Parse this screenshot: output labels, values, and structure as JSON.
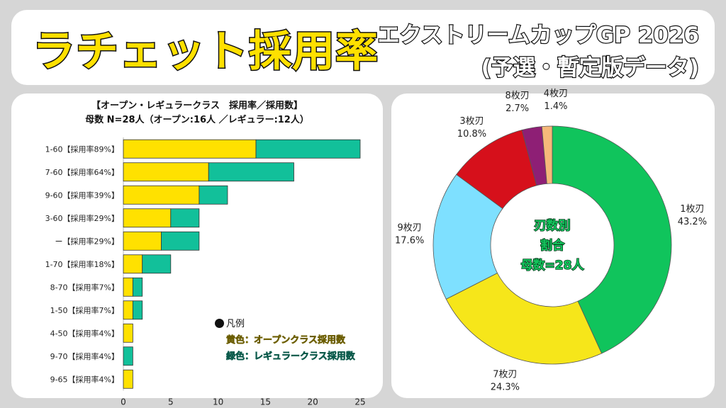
{
  "header": {
    "title": "ラチェット採用率",
    "subtitle_line1": "エクストリームカップGP 2026",
    "subtitle_line2": "(予選・暫定版データ)"
  },
  "bar_chart": {
    "title_line1": "【オープン・レギュラークラス　採用率／採用数】",
    "title_line2": "母数 N=28人（オープン:16人 ／レギュラー:12人）",
    "legend": {
      "title": "凡例",
      "yellow_label": "黄色：オープンクラス採用数",
      "green_label": "緑色：レギュラークラス採用数"
    }
  },
  "pie_chart": {
    "center_line1": "刃数別",
    "center_line2": "割合",
    "center_line3": "母数=28人"
  },
  "colors": {
    "open": "#ffe100",
    "regular": "#12c09a",
    "slice_1": "#10c45c",
    "slice_7": "#f6e61a",
    "slice_9": "#7ee0ff",
    "slice_3": "#d6101b",
    "slice_8": "#8e1f75",
    "slice_4": "#f6b87a"
  },
  "chart_data": [
    {
      "type": "bar",
      "orientation": "horizontal",
      "stacked": true,
      "categories": [
        "1-60【採用率89%】",
        "7-60【採用率64%】",
        "9-60【採用率39%】",
        "3-60【採用率29%】",
        "ー【採用率29%】",
        "1-70【採用率18%】",
        "8-70【採用率7%】",
        "1-50【採用率7%】",
        "4-50【採用率4%】",
        "9-70【採用率4%】",
        "9-65【採用率4%】"
      ],
      "series": [
        {
          "name": "オープンクラス採用数",
          "values": [
            14,
            9,
            8,
            5,
            4,
            2,
            1,
            1,
            1,
            0,
            1
          ]
        },
        {
          "name": "レギュラークラス採用数",
          "values": [
            11,
            9,
            3,
            3,
            4,
            3,
            1,
            1,
            0,
            1,
            0
          ]
        }
      ],
      "xlim": [
        0,
        25
      ],
      "xticks": [
        0,
        5,
        10,
        15,
        20,
        25
      ],
      "grid": false,
      "legend_position": "bottom-right"
    },
    {
      "type": "pie",
      "donut": true,
      "labels": [
        "1枚刃",
        "7枚刃",
        "9枚刃",
        "3枚刃",
        "8枚刃",
        "4枚刃"
      ],
      "values": [
        43.2,
        24.3,
        17.6,
        10.8,
        2.7,
        1.4
      ],
      "value_labels": [
        "43.2%",
        "24.3%",
        "17.6%",
        "10.8%",
        "2.7%",
        "1.4%"
      ]
    }
  ]
}
